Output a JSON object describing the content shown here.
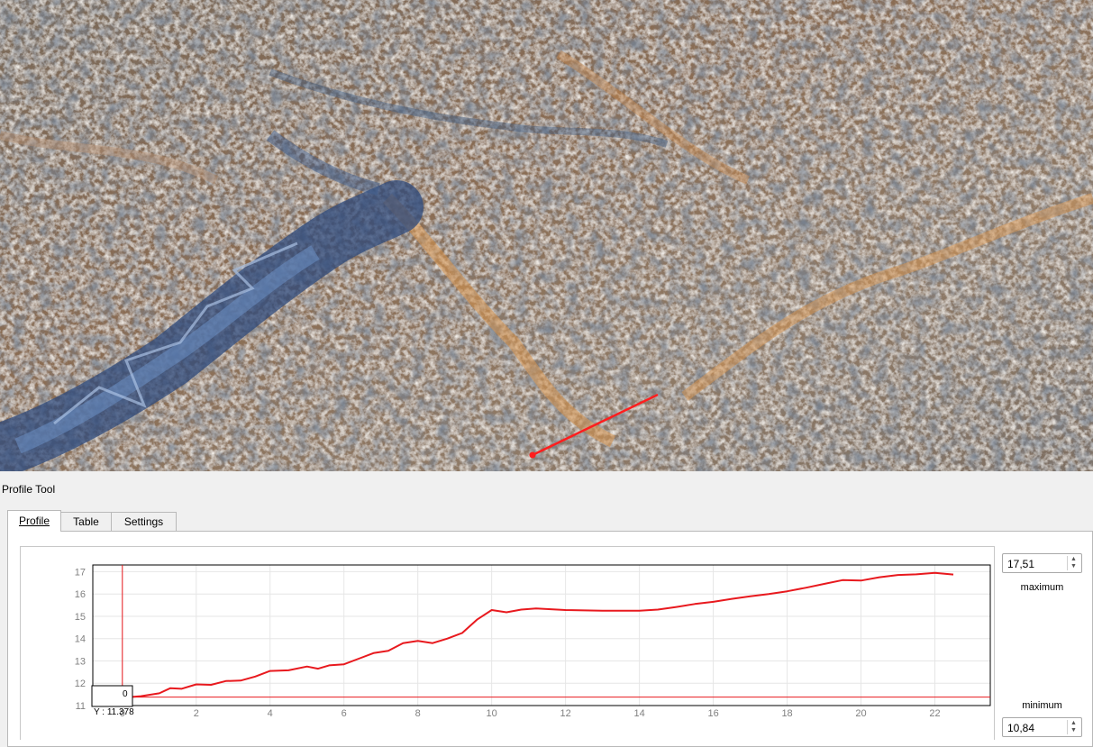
{
  "dock": {
    "title": "Profile Tool"
  },
  "tabs": [
    {
      "label": "Profile",
      "active": true
    },
    {
      "label": "Table",
      "active": false
    },
    {
      "label": "Settings",
      "active": false
    }
  ],
  "scale": {
    "maximum_value": "17,51",
    "maximum_label": "maximum",
    "minimum_label": "minimum",
    "minimum_value": "10,84"
  },
  "cursor_readout": {
    "x_text": "Y : 11.378",
    "box_text": "0"
  },
  "colors": {
    "profile_line": "#e8191e",
    "map_profile_line": "#ff1e1e",
    "grid": "#e6e6e6"
  },
  "chart_data": {
    "type": "line",
    "title": "",
    "xlabel": "",
    "ylabel": "",
    "xlim": [
      -0.8,
      23.5
    ],
    "ylim": [
      11,
      17.3
    ],
    "x_ticks": [
      0,
      2,
      4,
      6,
      8,
      10,
      12,
      14,
      16,
      18,
      20,
      22
    ],
    "y_ticks": [
      11,
      12,
      13,
      14,
      15,
      16,
      17
    ],
    "grid": true,
    "cursor": {
      "x": 0,
      "y": 11.378
    },
    "series": [
      {
        "x": [
          0,
          0.5,
          1.0,
          1.3,
          1.6,
          2.0,
          2.4,
          2.8,
          3.2,
          3.6,
          4.0,
          4.5,
          5.0,
          5.3,
          5.6,
          6.0,
          6.4,
          6.8,
          7.2,
          7.6,
          8.0,
          8.4,
          8.8,
          9.2,
          9.6,
          10.0,
          10.4,
          10.8,
          11.2,
          12,
          13,
          14,
          14.5,
          15,
          15.5,
          16,
          16.5,
          17,
          17.5,
          18,
          18.5,
          19,
          19.5,
          20,
          20.5,
          21,
          21.5,
          22,
          22.5
        ],
        "y": [
          11.35,
          11.42,
          11.55,
          11.78,
          11.75,
          11.95,
          11.93,
          12.1,
          12.12,
          12.3,
          12.55,
          12.58,
          12.75,
          12.65,
          12.8,
          12.85,
          13.1,
          13.35,
          13.45,
          13.8,
          13.9,
          13.8,
          14.0,
          14.25,
          14.85,
          15.28,
          15.18,
          15.3,
          15.35,
          15.28,
          15.25,
          15.25,
          15.3,
          15.42,
          15.55,
          15.65,
          15.78,
          15.9,
          16.0,
          16.12,
          16.28,
          16.45,
          16.62,
          16.6,
          16.75,
          16.85,
          16.88,
          16.95,
          16.87
        ]
      }
    ]
  }
}
